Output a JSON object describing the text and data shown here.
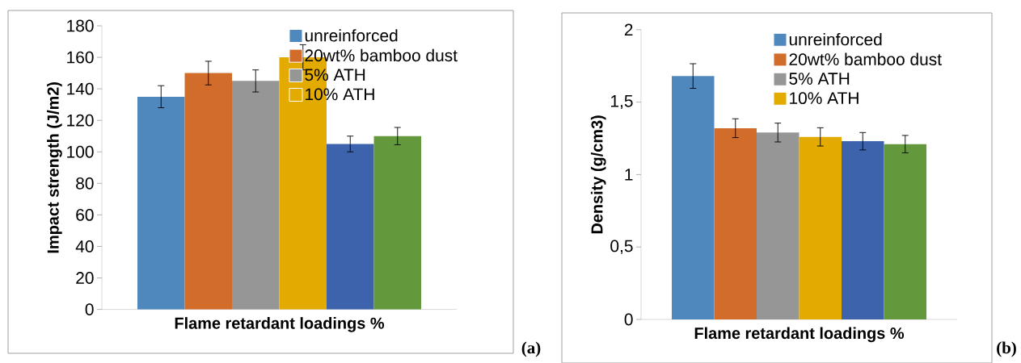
{
  "chart_data": [
    {
      "type": "bar",
      "categories": [
        null
      ],
      "xlabel": "Flame retardant loadings %",
      "ylabel": "Impact strength (J/m2)",
      "ylim": [
        0,
        180
      ],
      "yticks": [
        0,
        20,
        40,
        60,
        80,
        100,
        120,
        140,
        160,
        180
      ],
      "legend": "top right",
      "annotations": [
        "(a)"
      ],
      "series": [
        {
          "name": "unreinforced",
          "color": "#4f88bd",
          "values": [
            135
          ],
          "errors": [
            7
          ]
        },
        {
          "name": "20wt% bamboo dust",
          "color": "#d26c2b",
          "values": [
            150
          ],
          "errors": [
            7.5
          ]
        },
        {
          "name": "5% ATH",
          "color": "#969696",
          "values": [
            145
          ],
          "errors": [
            7
          ]
        },
        {
          "name": "10% ATH",
          "color": "#e3aa00",
          "values": [
            160
          ],
          "errors": [
            8
          ]
        },
        {
          "color": "#3d63ad",
          "values": [
            105
          ],
          "errors": [
            5
          ]
        },
        {
          "color": "#63993c",
          "values": [
            110
          ],
          "errors": [
            5.5
          ]
        }
      ]
    },
    {
      "type": "bar",
      "categories": [
        null
      ],
      "xlabel": "Flame retardant loadings %",
      "ylabel": "Density  (g/cm3)",
      "ylim": [
        0,
        2
      ],
      "yticks": [
        0,
        {
          "value": 0.5,
          "label": "0,5"
        },
        1,
        {
          "value": 1.5,
          "label": "1,5"
        },
        2
      ],
      "legend": "top right",
      "annotations": [
        "(b)"
      ],
      "series": [
        {
          "name": "unreinforced",
          "color": "#4f88bd",
          "values": [
            1.68
          ],
          "errors": [
            0.085
          ]
        },
        {
          "name": "20wt% bamboo dust",
          "color": "#d26c2b",
          "values": [
            1.32
          ],
          "errors": [
            0.065
          ]
        },
        {
          "name": "5% ATH",
          "color": "#969696",
          "values": [
            1.29
          ],
          "errors": [
            0.065
          ]
        },
        {
          "name": "10% ATH",
          "color": "#e3aa00",
          "values": [
            1.26
          ],
          "errors": [
            0.063
          ]
        },
        {
          "color": "#3d63ad",
          "values": [
            1.23
          ],
          "errors": [
            0.06
          ]
        },
        {
          "color": "#63993c",
          "values": [
            1.21
          ],
          "errors": [
            0.06
          ]
        }
      ]
    }
  ]
}
